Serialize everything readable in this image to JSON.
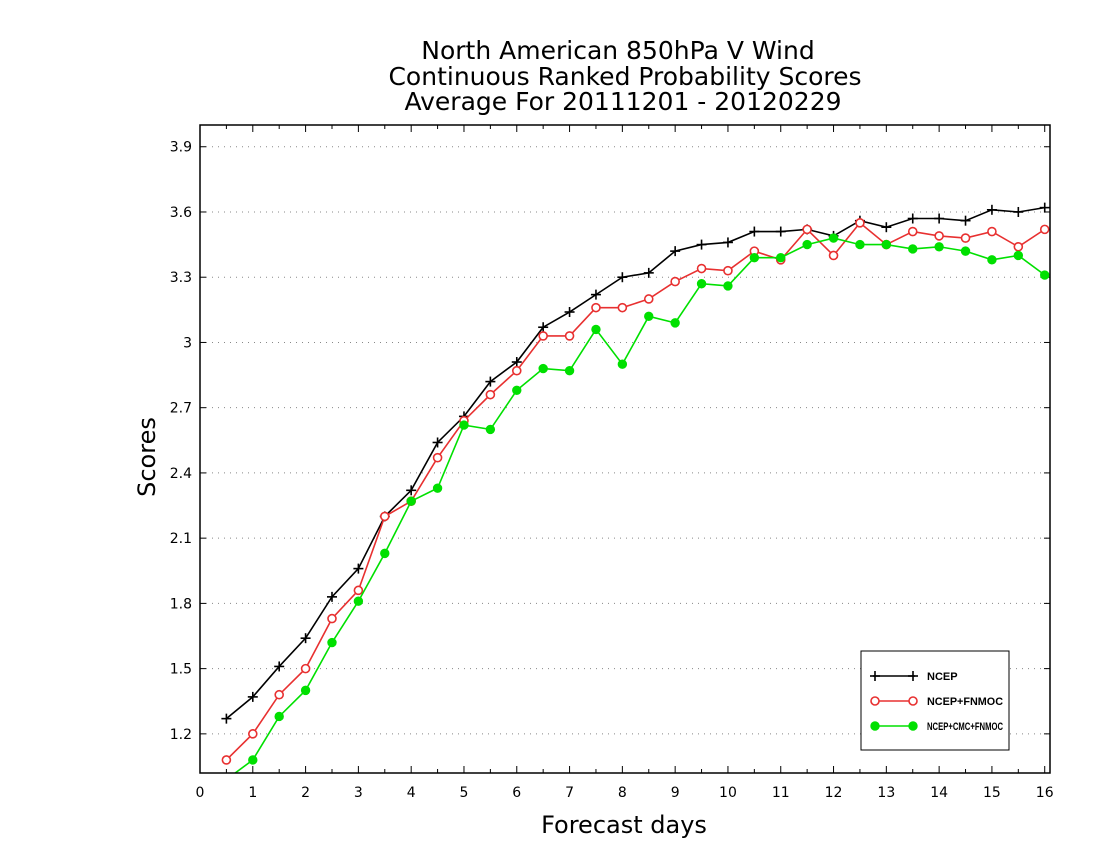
{
  "chart_data": {
    "type": "line",
    "title_lines": [
      "North American 850hPa V Wind",
      "Continuous Ranked Probability Scores",
      "Average For 20111201 - 20120229"
    ],
    "xlabel": "Forecast days",
    "ylabel": "Scores",
    "xlim": [
      0,
      16.1
    ],
    "ylim": [
      1.02,
      4.0
    ],
    "x_ticks": [
      "0",
      "1",
      "2",
      "3",
      "4",
      "5",
      "6",
      "7",
      "8",
      "9",
      "10",
      "11",
      "12",
      "13",
      "14",
      "15",
      "16"
    ],
    "y_ticks": [
      "1.2",
      "1.5",
      "1.8",
      "2.1",
      "2.4",
      "2.7",
      "3",
      "3.3",
      "3.6",
      "3.9"
    ],
    "grid": "horizontal dotted",
    "legend_position": "bottom-right",
    "x": [
      0.5,
      1,
      1.5,
      2,
      2.5,
      3,
      3.5,
      4,
      4.5,
      5,
      5.5,
      6,
      6.5,
      7,
      7.5,
      8,
      8.5,
      9,
      9.5,
      10,
      10.5,
      11,
      11.5,
      12,
      12.5,
      13,
      13.5,
      14,
      14.5,
      15,
      15.5,
      16
    ],
    "series": [
      {
        "name": "NCEP",
        "color": "#000000",
        "marker": "plus",
        "values": [
          1.27,
          1.37,
          1.51,
          1.64,
          1.83,
          1.96,
          2.2,
          2.32,
          2.54,
          2.66,
          2.82,
          2.91,
          3.07,
          3.14,
          3.22,
          3.3,
          3.32,
          3.42,
          3.45,
          3.46,
          3.51,
          3.51,
          3.52,
          3.49,
          3.56,
          3.53,
          3.57,
          3.57,
          3.56,
          3.61,
          3.6,
          3.62
        ]
      },
      {
        "name": "NCEP+FNMOC",
        "color": "#e83030",
        "marker": "open-circle",
        "values": [
          1.08,
          1.2,
          1.38,
          1.5,
          1.73,
          1.86,
          2.2,
          2.27,
          2.47,
          2.64,
          2.76,
          2.87,
          3.03,
          3.03,
          3.16,
          3.16,
          3.2,
          3.28,
          3.34,
          3.33,
          3.42,
          3.38,
          3.52,
          3.4,
          3.55,
          3.45,
          3.51,
          3.49,
          3.48,
          3.51,
          3.44,
          3.52
        ]
      },
      {
        "name": "NCEP+CMC+FNMOC",
        "color": "#00e000",
        "marker": "filled-circle",
        "values": [
          0.99,
          1.08,
          1.28,
          1.4,
          1.62,
          1.81,
          2.03,
          2.27,
          2.33,
          2.62,
          2.6,
          2.78,
          2.88,
          2.87,
          3.06,
          2.9,
          3.12,
          3.09,
          3.27,
          3.26,
          3.39,
          3.39,
          3.45,
          3.48,
          3.45,
          3.45,
          3.43,
          3.44,
          3.42,
          3.38,
          3.4,
          3.31
        ]
      }
    ]
  }
}
